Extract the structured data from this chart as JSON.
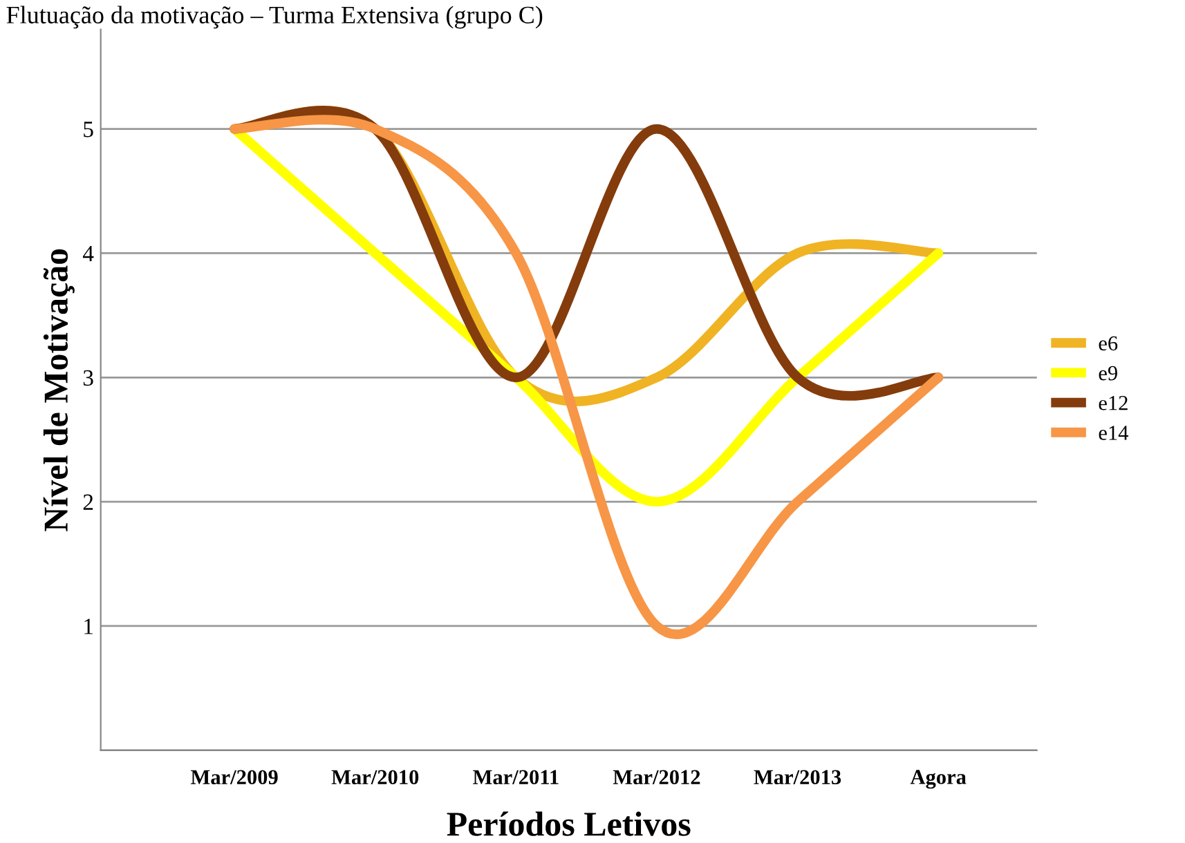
{
  "chart_data": {
    "type": "line",
    "title": "Flutuação da motivação – Turma Extensiva (grupo C)",
    "xlabel": "Períodos Letivos",
    "ylabel": "Nível de Motivação",
    "categories": [
      "Mar/2009",
      "Mar/2010",
      "Mar/2011",
      "Mar/2012",
      "Mar/2013",
      "Agora"
    ],
    "series": [
      {
        "name": "e6",
        "color": "#f0b323",
        "values": [
          5,
          5,
          3,
          3,
          4,
          4
        ]
      },
      {
        "name": "e9",
        "color": "#ffff00",
        "values": [
          5,
          4,
          3,
          2,
          3,
          4
        ]
      },
      {
        "name": "e12",
        "color": "#843c0c",
        "values": [
          5,
          5,
          3,
          5,
          3,
          3
        ]
      },
      {
        "name": "e14",
        "color": "#f79646",
        "values": [
          5,
          5,
          4,
          1,
          2,
          3
        ]
      }
    ],
    "ylim": [
      0,
      5.8
    ],
    "yticks": [
      {
        "value": 0,
        "label": null
      },
      1,
      2,
      3,
      4,
      5
    ],
    "grid": "y",
    "legend": "right",
    "marker": "none",
    "line_style": "solid"
  }
}
